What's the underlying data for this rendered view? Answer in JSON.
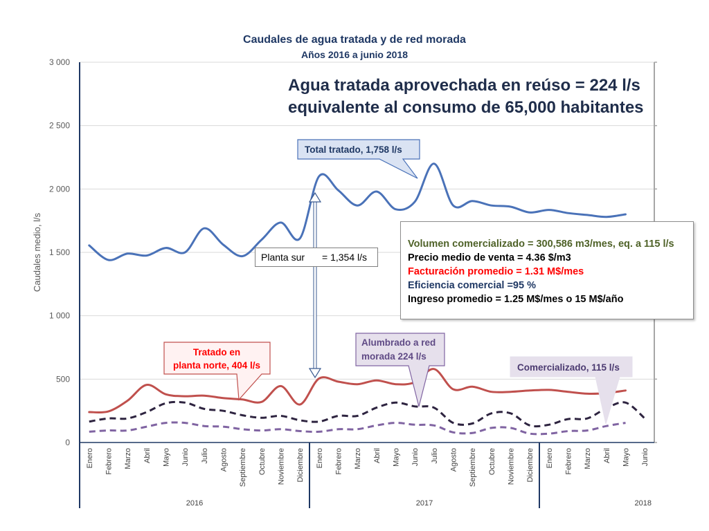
{
  "title": "Caudales  de agua tratada y de red morada",
  "subtitle": "Años 2016 a junio 2018",
  "headline": {
    "line1": "Agua tratada aprovechada en reúso = 224 l/s",
    "line2": "equivalente al consumo de 65,000 habitantes"
  },
  "planta_sur": {
    "label": "Planta sur",
    "value": "= 1,354 l/s"
  },
  "info_box": {
    "line1": "Volumen comercializado = 300,586 m3/mes, eq. a 115 l/s",
    "line2": "Precio medio de venta = 4.36 $/m3",
    "line3": "Facturación promedio = 1.31 M$/mes",
    "line4": "Eficiencia comercial =95 %",
    "line5": "Ingreso promedio = 1.25 M$/mes o 15 M$/año"
  },
  "callouts": {
    "total": "Total tratado,  1,758 l/s",
    "norte_line1": "Tratado en",
    "norte_line2": "planta norte, 404 l/s",
    "morada_line1": "Alumbrado a red",
    "morada_line2": "morada 224 l/s",
    "comercializado": "Comercializado, 115 l/s"
  },
  "colors": {
    "total": "#4a72b8",
    "norte": "#c0504d",
    "morada": "#2e2440",
    "comercializado": "#8064a2",
    "headline": "#1f2d4a",
    "info_green": "#4f6228",
    "info_red": "#ff0000",
    "info_blue": "#1f3864"
  },
  "chart_data": {
    "type": "line",
    "ylabel": "Caudales medio, l/s",
    "ylim": [
      0,
      3000
    ],
    "yticks": [
      0,
      500,
      1000,
      1500,
      2000,
      2500,
      3000
    ],
    "ytick_labels": [
      "0",
      "500",
      "1 000",
      "1 500",
      "2 000",
      "2 500",
      "3 000"
    ],
    "grid": true,
    "categories": [
      "Enero",
      "Febrero",
      "Marzo",
      "Abril",
      "Mayo",
      "Junio",
      "Julio",
      "Agosto",
      "Septiembre",
      "Octubre",
      "Noviembre",
      "Diciembre",
      "Enero",
      "Febrero",
      "Marzo",
      "Abril",
      "Mayo",
      "Junio",
      "Julio",
      "Agosto",
      "Septiembre",
      "Octubre",
      "Noviembre",
      "Diciembre",
      "Enero",
      "Febrero",
      "Marzo",
      "Abril",
      "Mayo",
      "Junio"
    ],
    "years": [
      {
        "label": "2016",
        "start": 0,
        "end": 11
      },
      {
        "label": "2017",
        "start": 12,
        "end": 23
      },
      {
        "label": "2018",
        "start": 24,
        "end": 29
      }
    ],
    "series": [
      {
        "key": "total",
        "values": [
          1555,
          1440,
          1490,
          1475,
          1535,
          1500,
          1690,
          1560,
          1470,
          1600,
          1735,
          1610,
          2100,
          1990,
          1870,
          1980,
          1840,
          1900,
          2200,
          1870,
          1905,
          1870,
          1860,
          1815,
          1835,
          1810,
          1795,
          1780,
          1800,
          null
        ],
        "style": "solid"
      },
      {
        "key": "norte",
        "values": [
          240,
          245,
          330,
          455,
          380,
          365,
          370,
          350,
          340,
          320,
          445,
          300,
          505,
          480,
          460,
          490,
          460,
          475,
          580,
          420,
          440,
          400,
          400,
          410,
          415,
          400,
          385,
          390,
          410,
          null
        ],
        "style": "solid"
      },
      {
        "key": "morada",
        "values": [
          165,
          190,
          190,
          240,
          310,
          315,
          265,
          250,
          215,
          195,
          210,
          175,
          165,
          210,
          210,
          275,
          315,
          285,
          275,
          155,
          150,
          230,
          230,
          135,
          140,
          185,
          190,
          270,
          315,
          190
        ],
        "style": "dash"
      },
      {
        "key": "comercializado",
        "values": [
          85,
          95,
          95,
          125,
          155,
          155,
          130,
          125,
          105,
          95,
          105,
          90,
          85,
          105,
          105,
          135,
          155,
          140,
          135,
          80,
          75,
          115,
          115,
          70,
          70,
          90,
          95,
          130,
          155,
          null
        ],
        "style": "dash"
      }
    ]
  }
}
